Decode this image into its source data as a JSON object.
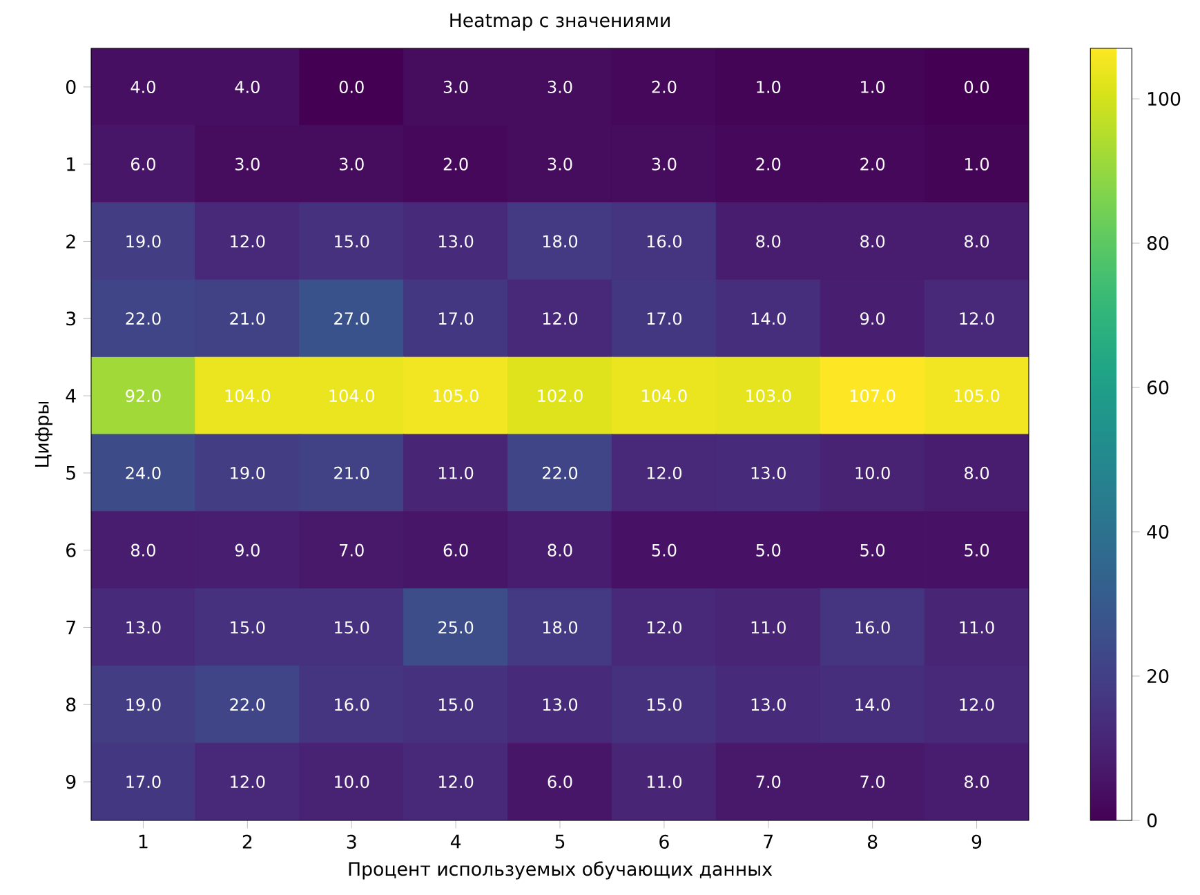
{
  "chart_data": {
    "type": "heatmap",
    "title": "Heatmap с значениями",
    "xlabel": "Процент используемых обучающих данных",
    "ylabel": "Цифры",
    "categories": [
      "1",
      "2",
      "3",
      "4",
      "5",
      "6",
      "7",
      "8",
      "9"
    ],
    "y_categories": [
      "0",
      "1",
      "2",
      "3",
      "4",
      "5",
      "6",
      "7",
      "8",
      "9"
    ],
    "cells": [
      [
        4,
        4,
        0,
        3,
        3,
        2,
        1,
        1,
        0
      ],
      [
        6,
        3,
        3,
        2,
        3,
        3,
        2,
        2,
        1
      ],
      [
        19,
        12,
        15,
        13,
        18,
        16,
        8,
        8,
        8
      ],
      [
        22,
        21,
        27,
        17,
        12,
        17,
        14,
        9,
        12
      ],
      [
        92,
        104,
        104,
        105,
        102,
        104,
        103,
        107,
        105
      ],
      [
        24,
        19,
        21,
        11,
        22,
        12,
        13,
        10,
        8
      ],
      [
        8,
        9,
        7,
        6,
        8,
        5,
        5,
        5,
        5
      ],
      [
        13,
        15,
        15,
        25,
        18,
        12,
        11,
        16,
        11
      ],
      [
        19,
        22,
        16,
        15,
        13,
        15,
        13,
        14,
        12
      ],
      [
        17,
        12,
        10,
        12,
        6,
        11,
        7,
        7,
        8
      ]
    ],
    "cell_labels": [
      [
        "4.0",
        "4.0",
        "0.0",
        "3.0",
        "3.0",
        "2.0",
        "1.0",
        "1.0",
        "0.0"
      ],
      [
        "6.0",
        "3.0",
        "3.0",
        "2.0",
        "3.0",
        "3.0",
        "2.0",
        "2.0",
        "1.0"
      ],
      [
        "19.0",
        "12.0",
        "15.0",
        "13.0",
        "18.0",
        "16.0",
        "8.0",
        "8.0",
        "8.0"
      ],
      [
        "22.0",
        "21.0",
        "27.0",
        "17.0",
        "12.0",
        "17.0",
        "14.0",
        "9.0",
        "12.0"
      ],
      [
        "92.0",
        "104.0",
        "104.0",
        "105.0",
        "102.0",
        "104.0",
        "103.0",
        "107.0",
        "105.0"
      ],
      [
        "24.0",
        "19.0",
        "21.0",
        "11.0",
        "22.0",
        "12.0",
        "13.0",
        "10.0",
        "8.0"
      ],
      [
        "8.0",
        "9.0",
        "7.0",
        "6.0",
        "8.0",
        "5.0",
        "5.0",
        "5.0",
        "5.0"
      ],
      [
        "13.0",
        "15.0",
        "15.0",
        "25.0",
        "18.0",
        "12.0",
        "11.0",
        "16.0",
        "11.0"
      ],
      [
        "19.0",
        "22.0",
        "16.0",
        "15.0",
        "13.0",
        "15.0",
        "13.0",
        "14.0",
        "12.0"
      ],
      [
        "17.0",
        "12.0",
        "10.0",
        "12.0",
        "6.0",
        "11.0",
        "7.0",
        "7.0",
        "8.0"
      ]
    ],
    "clim": [
      0,
      107
    ],
    "cticks": [
      0,
      20,
      40,
      60,
      80,
      100
    ]
  }
}
